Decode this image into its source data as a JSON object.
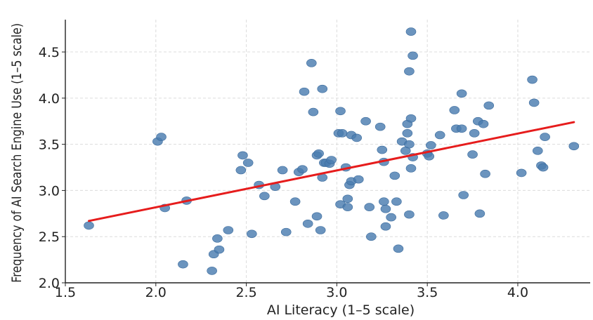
{
  "chart_data": {
    "type": "scatter",
    "title": "",
    "xlabel": "AI Literacy (1–5 scale)",
    "ylabel": "Frequency of AI Search Engine Use (1–5 scale)",
    "xlim": [
      1.5,
      4.4
    ],
    "ylim": [
      2.0,
      4.85
    ],
    "xticks": [
      1.5,
      2.0,
      2.5,
      3.0,
      3.5,
      4.0
    ],
    "yticks": [
      2.0,
      2.5,
      3.0,
      3.5,
      4.0,
      4.5
    ],
    "xtick_labels": [
      "1.5",
      "2.0",
      "2.5",
      "3.0",
      "3.5",
      "4.0"
    ],
    "ytick_labels": [
      "2.0",
      "2.5",
      "3.0",
      "3.5",
      "4.0",
      "4.5"
    ],
    "grid": true,
    "colors": {
      "points": "#4a7cb0",
      "regression": "#e61c1c",
      "grid": "#dcdcdc",
      "axis": "#222222"
    },
    "regression_line": {
      "x": [
        1.63,
        4.31
      ],
      "y": [
        2.67,
        3.74
      ]
    },
    "points": {
      "x": [
        1.63,
        2.01,
        2.03,
        2.05,
        2.15,
        2.17,
        2.31,
        2.32,
        2.34,
        2.35,
        2.4,
        2.47,
        2.48,
        2.51,
        2.53,
        2.57,
        2.6,
        2.66,
        2.7,
        2.72,
        2.77,
        2.79,
        2.81,
        2.82,
        2.84,
        2.86,
        2.87,
        2.89,
        2.89,
        2.9,
        2.91,
        2.92,
        2.92,
        2.93,
        2.94,
        2.96,
        2.97,
        3.01,
        3.02,
        3.02,
        3.03,
        3.05,
        3.06,
        3.06,
        3.07,
        3.08,
        3.08,
        3.11,
        3.12,
        3.16,
        3.18,
        3.19,
        3.24,
        3.25,
        3.26,
        3.26,
        3.27,
        3.27,
        3.3,
        3.32,
        3.33,
        3.34,
        3.36,
        3.38,
        3.39,
        3.39,
        3.4,
        3.4,
        3.4,
        3.41,
        3.41,
        3.41,
        3.42,
        3.42,
        3.5,
        3.51,
        3.52,
        3.57,
        3.59,
        3.65,
        3.66,
        3.69,
        3.69,
        3.7,
        3.75,
        3.76,
        3.78,
        3.79,
        3.81,
        3.82,
        3.84,
        4.02,
        4.08,
        4.09,
        4.11,
        4.13,
        4.14,
        4.15,
        4.31
      ],
      "y": [
        2.62,
        3.53,
        3.58,
        2.81,
        2.2,
        2.89,
        2.13,
        2.31,
        2.48,
        2.36,
        2.57,
        3.22,
        3.38,
        3.3,
        2.53,
        3.06,
        2.94,
        3.04,
        3.22,
        2.55,
        2.88,
        3.2,
        3.23,
        4.07,
        2.64,
        4.38,
        3.85,
        2.72,
        3.38,
        3.4,
        2.57,
        3.14,
        4.1,
        3.3,
        3.3,
        3.29,
        3.33,
        3.62,
        2.85,
        3.86,
        3.62,
        3.25,
        2.91,
        2.82,
        3.06,
        3.6,
        3.1,
        3.57,
        3.12,
        3.75,
        2.82,
        2.5,
        3.69,
        3.44,
        2.88,
        3.31,
        2.61,
        2.8,
        2.71,
        3.16,
        2.88,
        2.37,
        3.53,
        3.43,
        3.72,
        3.62,
        4.29,
        3.5,
        2.74,
        4.72,
        3.78,
        3.24,
        4.46,
        3.36,
        3.4,
        3.37,
        3.49,
        3.6,
        2.73,
        3.87,
        3.67,
        3.67,
        4.05,
        2.95,
        3.39,
        3.62,
        3.75,
        2.75,
        3.72,
        3.18,
        3.92,
        3.19,
        4.2,
        3.95,
        3.43,
        3.27,
        3.25,
        3.58,
        3.48
      ]
    }
  }
}
